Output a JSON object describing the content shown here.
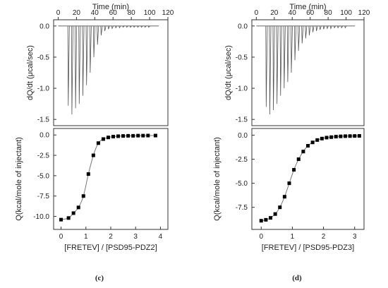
{
  "panels": [
    {
      "label": "(c)",
      "thermogram": {
        "top_axis_label": "Time (min)",
        "ylabel": "dQ/dt (μcal/sec)",
        "x_ticks": [
          "0",
          "20",
          "40",
          "60",
          "80",
          "100",
          "120"
        ],
        "y_ticks": [
          "0.0",
          "-0.5",
          "-1.0",
          "-1.5"
        ]
      },
      "binding": {
        "ylabel": "Q(kcal/mole of injectant)",
        "xlabel": "[FRETEV] / [PSD95-PDZ2]",
        "x_ticks": [
          "0",
          "1",
          "2",
          "3",
          "4"
        ],
        "y_ticks": [
          "0.0",
          "-2.5",
          "-5.0",
          "-7.5",
          "-10.0"
        ]
      }
    },
    {
      "label": "(d)",
      "thermogram": {
        "top_axis_label": "Time (min)",
        "ylabel": "dQ/dt (μcal/sec)",
        "x_ticks": [
          "0",
          "20",
          "40",
          "60",
          "80",
          "100",
          "120"
        ],
        "y_ticks": [
          "0.0",
          "-0.5",
          "-1.0",
          "-1.5"
        ]
      },
      "binding": {
        "ylabel": "Q(kcal/mole of injectant)",
        "xlabel": "[FRETEV] / [PSD95-PDZ3]",
        "x_ticks": [
          "0",
          "1",
          "2",
          "3"
        ],
        "y_ticks": [
          "0.0",
          "-2.5",
          "-5.0",
          "-7.5"
        ]
      }
    }
  ],
  "chart_data": [
    {
      "type": "line",
      "panel": "(c)",
      "subplot": "thermogram",
      "xlabel": "Time (min)",
      "ylabel": "dQ/dt (μcal/sec)",
      "xlim": [
        -5,
        120
      ],
      "ylim": [
        -1.6,
        0.1
      ],
      "injection_times": [
        11,
        15,
        19,
        23,
        27,
        31,
        35,
        39,
        43,
        47,
        51,
        55,
        59,
        63,
        67,
        71,
        75,
        79,
        83,
        87,
        91,
        95,
        99
      ],
      "peak_values": [
        -1.28,
        -1.42,
        -1.32,
        -1.25,
        -1.12,
        -0.95,
        -0.75,
        -0.5,
        -0.3,
        -0.15,
        -0.08,
        -0.05,
        -0.04,
        -0.03,
        -0.03,
        -0.02,
        -0.02,
        -0.02,
        -0.02,
        -0.02,
        -0.02,
        -0.02,
        -0.02
      ]
    },
    {
      "type": "scatter",
      "panel": "(c)",
      "subplot": "binding",
      "xlabel": "[FRETEV] / [PSD95-PDZ2]",
      "ylabel": "Q(kcal/mole of injectant)",
      "xlim": [
        -0.3,
        4.3
      ],
      "ylim": [
        -11.6,
        0.8
      ],
      "x": [
        0.0,
        0.3,
        0.5,
        0.7,
        0.9,
        1.1,
        1.3,
        1.5,
        1.7,
        1.9,
        2.1,
        2.3,
        2.5,
        2.7,
        2.9,
        3.1,
        3.3,
        3.5,
        3.8
      ],
      "y": [
        -10.4,
        -10.2,
        -9.6,
        -8.9,
        -7.5,
        -4.8,
        -2.5,
        -1.0,
        -0.5,
        -0.3,
        -0.2,
        -0.15,
        -0.12,
        -0.1,
        -0.1,
        -0.08,
        -0.08,
        -0.07,
        -0.07
      ],
      "fit_curve": true
    },
    {
      "type": "line",
      "panel": "(d)",
      "subplot": "thermogram",
      "xlabel": "Time (min)",
      "ylabel": "dQ/dt (μcal/sec)",
      "xlim": [
        -5,
        120
      ],
      "ylim": [
        -1.6,
        0.1
      ],
      "injection_times": [
        11,
        15,
        19,
        23,
        27,
        31,
        35,
        39,
        43,
        47,
        51,
        55,
        59,
        63,
        67,
        71,
        75,
        79,
        83,
        87,
        91,
        95,
        99
      ],
      "peak_values": [
        -1.3,
        -1.42,
        -1.35,
        -1.25,
        -1.12,
        -1.0,
        -0.9,
        -0.75,
        -0.55,
        -0.4,
        -0.28,
        -0.2,
        -0.15,
        -0.1,
        -0.08,
        -0.06,
        -0.05,
        -0.04,
        -0.04,
        -0.03,
        -0.03,
        -0.03,
        -0.03
      ]
    },
    {
      "type": "scatter",
      "panel": "(d)",
      "subplot": "binding",
      "xlabel": "[FRETEV] / [PSD95-PDZ3]",
      "ylabel": "Q(kcal/mole of injectant)",
      "xlim": [
        -0.3,
        3.3
      ],
      "ylim": [
        -9.8,
        0.7
      ],
      "x": [
        0.0,
        0.15,
        0.3,
        0.45,
        0.6,
        0.75,
        0.9,
        1.05,
        1.2,
        1.35,
        1.5,
        1.65,
        1.8,
        1.95,
        2.1,
        2.25,
        2.4,
        2.55,
        2.7,
        2.85,
        3.0,
        3.15
      ],
      "y": [
        -8.9,
        -8.8,
        -8.6,
        -8.2,
        -7.5,
        -6.4,
        -5.0,
        -3.6,
        -2.5,
        -1.7,
        -1.1,
        -0.75,
        -0.5,
        -0.35,
        -0.25,
        -0.2,
        -0.15,
        -0.12,
        -0.1,
        -0.09,
        -0.08,
        -0.07
      ],
      "fit_curve": true
    }
  ]
}
